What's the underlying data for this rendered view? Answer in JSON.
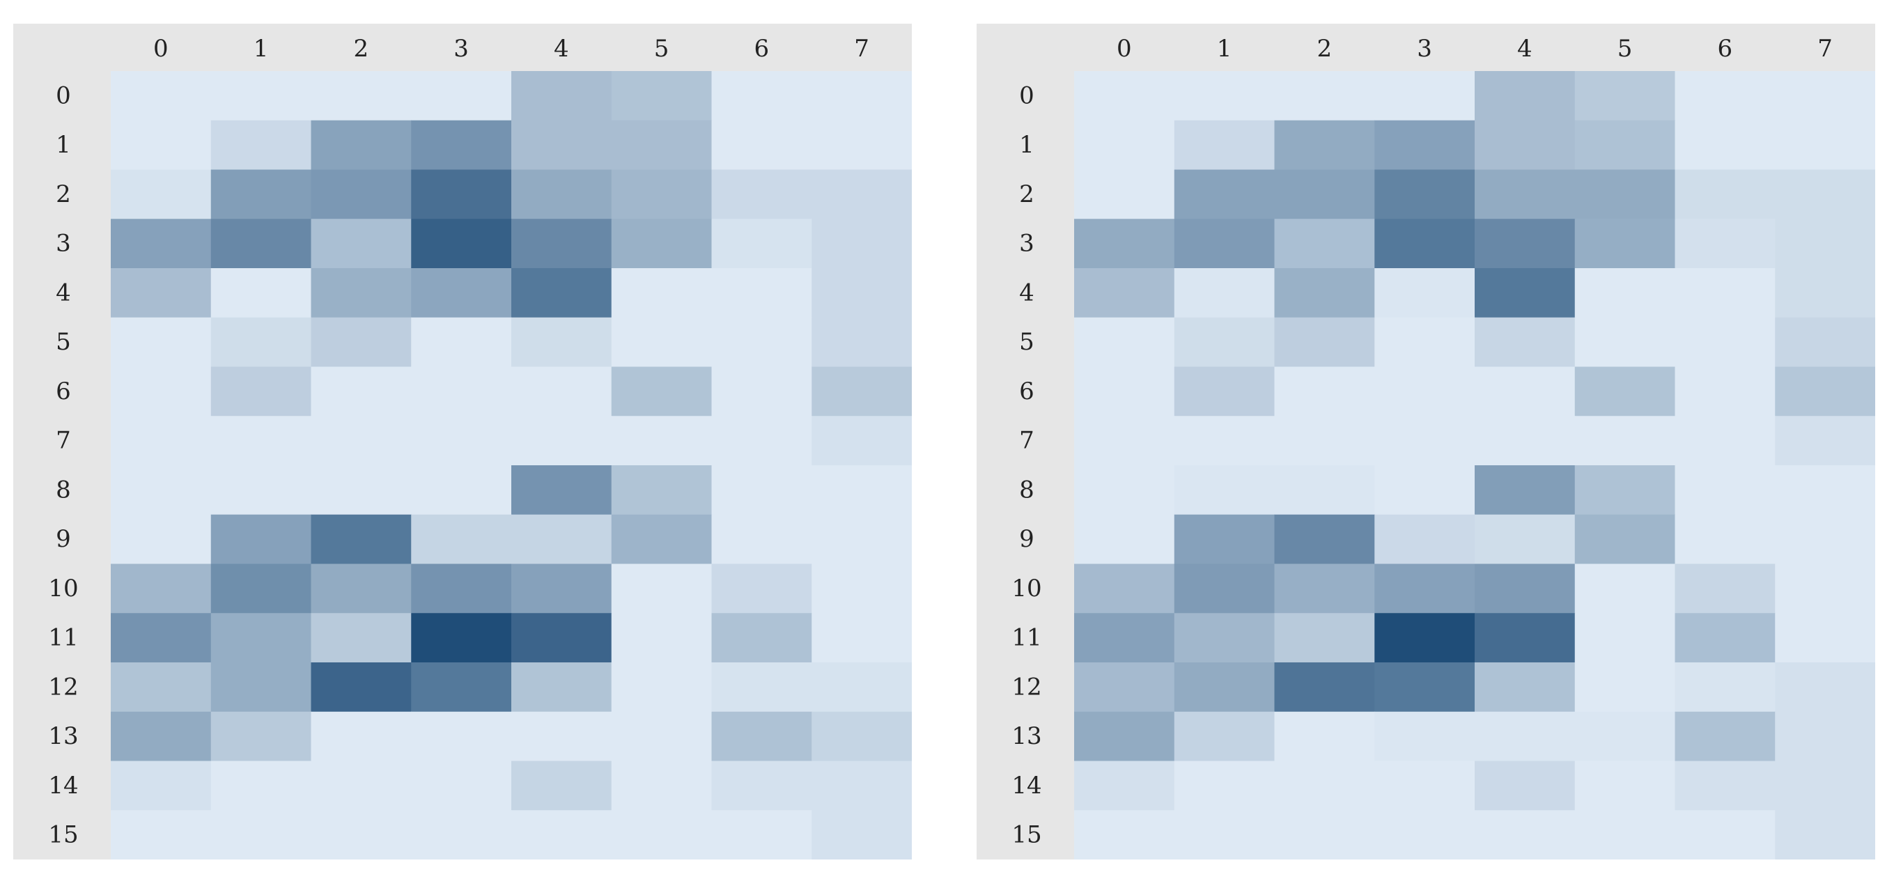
{
  "chart_data": [
    {
      "type": "heatmap",
      "title": "",
      "xlabel": "",
      "ylabel": "",
      "x_labels": [
        "0",
        "1",
        "2",
        "3",
        "4",
        "5",
        "6",
        "7"
      ],
      "y_labels": [
        "0",
        "1",
        "2",
        "3",
        "4",
        "5",
        "6",
        "7",
        "8",
        "9",
        "10",
        "11",
        "12",
        "13",
        "14",
        "15"
      ],
      "color_low": "#dee9f4",
      "color_high": "#1f4d78",
      "value_range": [
        0,
        1
      ],
      "values": [
        [
          0.0,
          0.0,
          0.0,
          0.0,
          0.28,
          0.24,
          0.0,
          0.0
        ],
        [
          0.0,
          0.1,
          0.45,
          0.55,
          0.28,
          0.28,
          0.0,
          0.0
        ],
        [
          0.04,
          0.48,
          0.52,
          0.78,
          0.4,
          0.32,
          0.1,
          0.1
        ],
        [
          0.46,
          0.62,
          0.27,
          0.88,
          0.62,
          0.36,
          0.04,
          0.1
        ],
        [
          0.28,
          0.0,
          0.36,
          0.43,
          0.72,
          0.0,
          0.0,
          0.1
        ],
        [
          0.0,
          0.08,
          0.17,
          0.0,
          0.08,
          0.0,
          0.0,
          0.1
        ],
        [
          0.0,
          0.17,
          0.0,
          0.0,
          0.0,
          0.24,
          0.0,
          0.2
        ],
        [
          0.0,
          0.0,
          0.0,
          0.0,
          0.0,
          0.0,
          0.0,
          0.05
        ],
        [
          0.0,
          0.0,
          0.0,
          0.0,
          0.55,
          0.24,
          0.0,
          0.0
        ],
        [
          0.0,
          0.46,
          0.72,
          0.13,
          0.13,
          0.34,
          0.0,
          0.0
        ],
        [
          0.32,
          0.58,
          0.4,
          0.55,
          0.46,
          0.0,
          0.1,
          0.0
        ],
        [
          0.55,
          0.38,
          0.2,
          1.0,
          0.85,
          0.0,
          0.25,
          0.0
        ],
        [
          0.24,
          0.38,
          0.85,
          0.72,
          0.24,
          0.0,
          0.04,
          0.04
        ],
        [
          0.4,
          0.2,
          0.0,
          0.0,
          0.0,
          0.0,
          0.25,
          0.13
        ],
        [
          0.05,
          0.0,
          0.0,
          0.0,
          0.13,
          0.0,
          0.05,
          0.05
        ],
        [
          0.0,
          0.0,
          0.0,
          0.0,
          0.0,
          0.0,
          0.0,
          0.05
        ]
      ]
    },
    {
      "type": "heatmap",
      "title": "",
      "xlabel": "",
      "ylabel": "",
      "x_labels": [
        "0",
        "1",
        "2",
        "3",
        "4",
        "5",
        "6",
        "7"
      ],
      "y_labels": [
        "0",
        "1",
        "2",
        "3",
        "4",
        "5",
        "6",
        "7",
        "8",
        "9",
        "10",
        "11",
        "12",
        "13",
        "14",
        "15"
      ],
      "color_low": "#dee9f4",
      "color_high": "#1f4d78",
      "value_range": [
        0,
        1
      ],
      "values": [
        [
          0.0,
          0.0,
          0.0,
          0.0,
          0.28,
          0.2,
          0.0,
          0.0
        ],
        [
          0.0,
          0.1,
          0.4,
          0.46,
          0.28,
          0.25,
          0.0,
          0.0
        ],
        [
          0.0,
          0.45,
          0.45,
          0.65,
          0.4,
          0.4,
          0.08,
          0.08
        ],
        [
          0.4,
          0.5,
          0.27,
          0.72,
          0.62,
          0.38,
          0.06,
          0.08
        ],
        [
          0.28,
          0.02,
          0.36,
          0.02,
          0.72,
          0.0,
          0.0,
          0.08
        ],
        [
          0.0,
          0.08,
          0.17,
          0.0,
          0.12,
          0.0,
          0.0,
          0.12
        ],
        [
          0.0,
          0.17,
          0.0,
          0.0,
          0.0,
          0.24,
          0.0,
          0.22
        ],
        [
          0.0,
          0.0,
          0.0,
          0.0,
          0.0,
          0.0,
          0.0,
          0.06
        ],
        [
          0.0,
          0.02,
          0.02,
          0.0,
          0.48,
          0.25,
          0.0,
          0.0
        ],
        [
          0.0,
          0.46,
          0.62,
          0.1,
          0.08,
          0.33,
          0.0,
          0.0
        ],
        [
          0.3,
          0.5,
          0.37,
          0.46,
          0.5,
          0.0,
          0.12,
          0.0
        ],
        [
          0.46,
          0.32,
          0.2,
          1.0,
          0.8,
          0.0,
          0.27,
          0.0
        ],
        [
          0.3,
          0.4,
          0.75,
          0.72,
          0.25,
          0.0,
          0.03,
          0.06
        ],
        [
          0.4,
          0.14,
          0.0,
          0.02,
          0.02,
          0.02,
          0.25,
          0.06
        ],
        [
          0.06,
          0.0,
          0.0,
          0.0,
          0.1,
          0.0,
          0.06,
          0.06
        ],
        [
          0.0,
          0.0,
          0.0,
          0.0,
          0.0,
          0.0,
          0.0,
          0.06
        ]
      ]
    }
  ]
}
